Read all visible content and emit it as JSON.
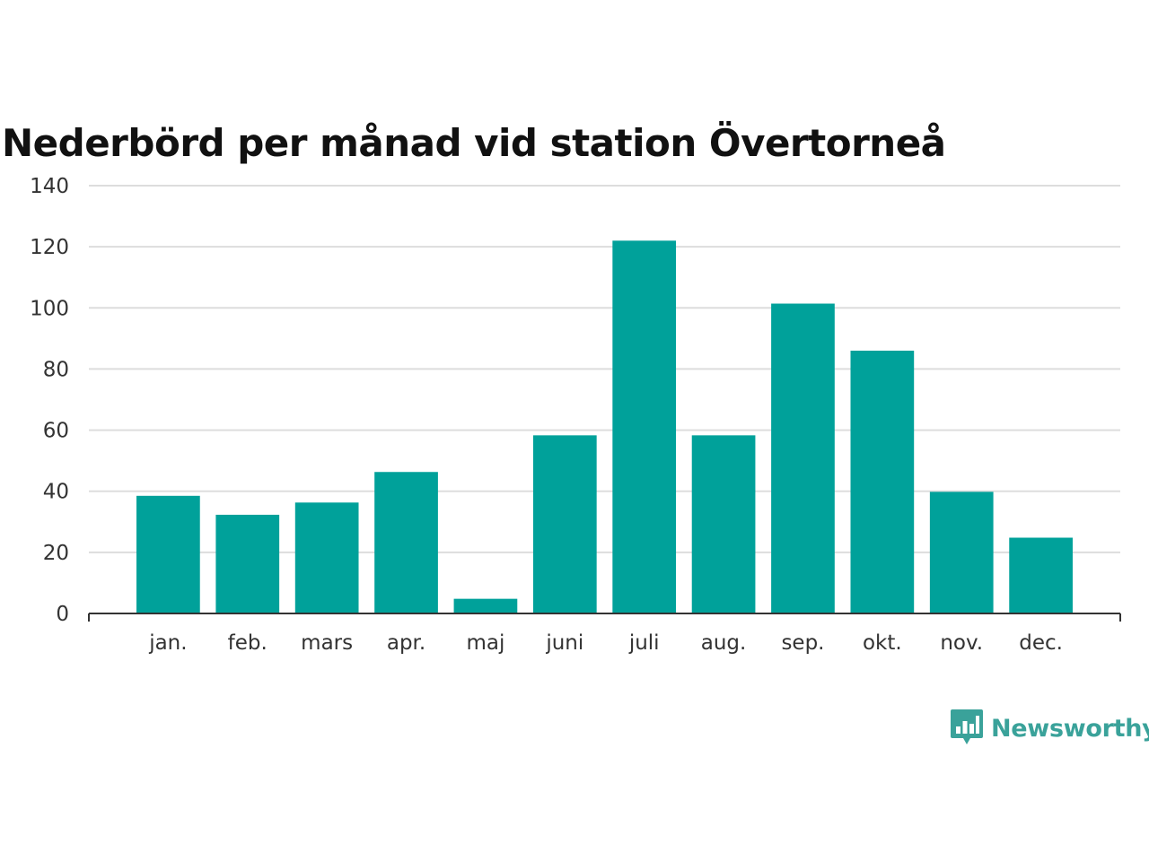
{
  "brand": {
    "name": "Newsworthy",
    "icon": "bar-chart-speech-bubble-icon",
    "color": "#3aa29a"
  },
  "chart_data": {
    "type": "bar",
    "title": "Nederbörd per månad vid station Övertorneå",
    "xlabel": "",
    "ylabel": "",
    "categories": [
      "jan.",
      "feb.",
      "mars",
      "apr.",
      "maj",
      "juni",
      "juli",
      "aug.",
      "sep.",
      "okt.",
      "nov.",
      "dec."
    ],
    "values": [
      38.5,
      32.3,
      36.3,
      46.3,
      4.8,
      58.3,
      122.0,
      58.3,
      101.4,
      86.0,
      39.8,
      24.8
    ],
    "ylim": [
      0,
      140
    ],
    "yticks": [
      0,
      20,
      40,
      60,
      80,
      100,
      120,
      140
    ],
    "grid": true,
    "legend": "none",
    "bar_color": "#00a19a",
    "grid_color": "#dddddd",
    "axis_color": "#333333"
  }
}
